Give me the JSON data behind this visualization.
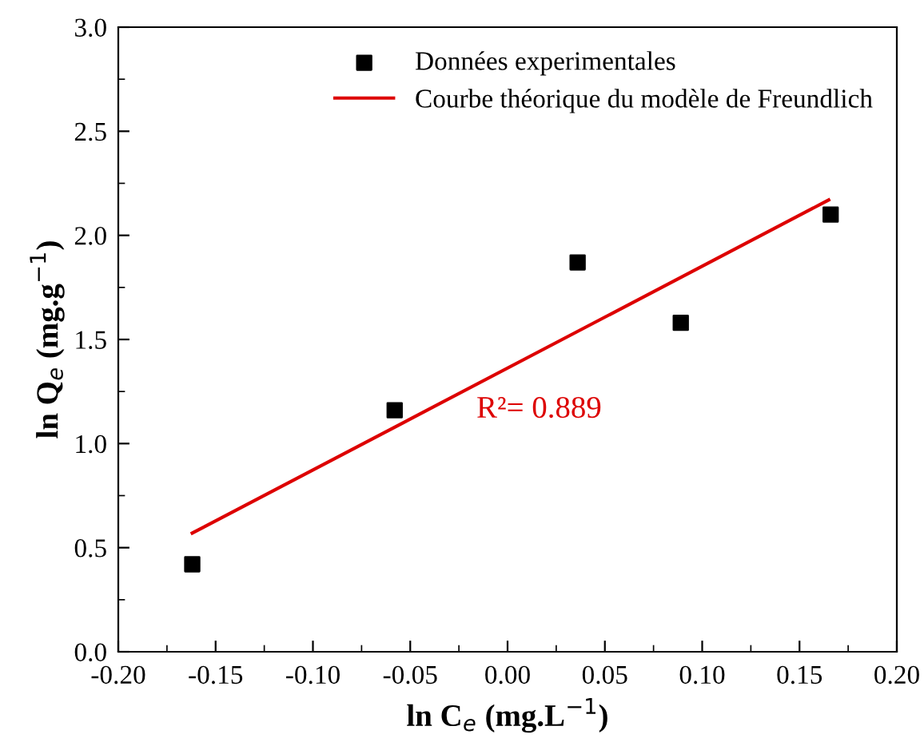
{
  "chart_data": {
    "type": "scatter",
    "xlabel": "ln C$_{e}$ (mg.L$^{−1}$)",
    "ylabel": "ln Q$_{e}$ (mg.g$^{−1}$)",
    "series": [
      {
        "name": "Données experimentales",
        "color": "#000000",
        "marker": "square",
        "x": [
          -0.162,
          -0.058,
          0.036,
          0.089,
          0.166
        ],
        "values": [
          0.42,
          1.16,
          1.87,
          1.58,
          2.1
        ]
      },
      {
        "name": "Courbe théorique du modèle de Freundlich",
        "type": "line",
        "color": "#dd0000",
        "marker": "none",
        "line_style": "solid",
        "x": [
          -0.162,
          0.165
        ],
        "values": [
          0.57,
          2.17
        ]
      }
    ],
    "annotations": [
      "R²= 0.889"
    ],
    "xlim": [
      -0.2,
      0.2
    ],
    "xticks": [
      {
        "value": -0.2,
        "label": "-0.20"
      },
      {
        "value": -0.15,
        "label": "-0.15"
      },
      {
        "value": -0.1,
        "label": "-0.10"
      },
      {
        "value": -0.05,
        "label": "-0.05"
      },
      {
        "value": 0,
        "label": "0.00"
      },
      {
        "value": 0.05,
        "label": "0.05"
      },
      {
        "value": 0.1,
        "label": "0.10"
      },
      {
        "value": 0.15,
        "label": "0.15"
      },
      {
        "value": 0.2,
        "label": "0.20"
      }
    ],
    "ylim": [
      0,
      3
    ],
    "yticks": [
      {
        "value": 0,
        "label": "0.0"
      },
      {
        "value": 0.5,
        "label": "0.5"
      },
      {
        "value": 1,
        "label": "1.0"
      },
      {
        "value": 1.5,
        "label": "1.5"
      },
      {
        "value": 2,
        "label": "2.0"
      },
      {
        "value": 2.5,
        "label": "2.5"
      },
      {
        "value": 3,
        "label": "3.0"
      }
    ],
    "grid": false,
    "legend": "top right"
  }
}
